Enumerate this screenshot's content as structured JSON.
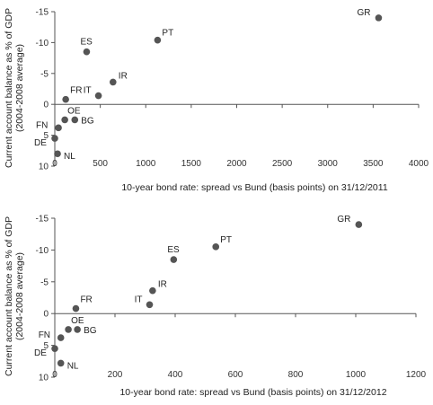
{
  "chart_data": [
    {
      "type": "scatter",
      "xlabel": "10-year bond rate: spread vs Bund (basis points) on 31/12/2011",
      "ylabel": "Current account balance as % of GDP",
      "ylabel2": "(2004-2008 average)",
      "xlim": [
        0,
        4000
      ],
      "xticks": [
        0,
        500,
        1000,
        1500,
        2000,
        2500,
        3000,
        3500,
        4000
      ],
      "ylim": [
        10,
        -15
      ],
      "yticks": [
        -15,
        -10,
        -5,
        0,
        5,
        10
      ],
      "ytick_labels": [
        "-15",
        "-10",
        "-5",
        "0",
        "5",
        "10"
      ],
      "points": [
        {
          "label": "GR",
          "x": 3560,
          "y": -14
        },
        {
          "label": "PT",
          "x": 1130,
          "y": -10.4
        },
        {
          "label": "ES",
          "x": 350,
          "y": -8.5
        },
        {
          "label": "IR",
          "x": 640,
          "y": -3.6
        },
        {
          "label": "IT",
          "x": 480,
          "y": -1.4
        },
        {
          "label": "FR",
          "x": 120,
          "y": -0.8
        },
        {
          "label": "OE",
          "x": 110,
          "y": 2.5
        },
        {
          "label": "BG",
          "x": 220,
          "y": 2.5
        },
        {
          "label": "FN",
          "x": 40,
          "y": 3.8
        },
        {
          "label": "DE",
          "x": 0,
          "y": 5.5
        },
        {
          "label": "NL",
          "x": 30,
          "y": 8.0
        }
      ]
    },
    {
      "type": "scatter",
      "xlabel": "10-year bond rate: spread vs Bund (basis points) on 31/12/2012",
      "ylabel": "Current account balance as % of GDP",
      "ylabel2": "(2004-2008 average)",
      "xlim": [
        0,
        1200
      ],
      "xticks": [
        0,
        200,
        400,
        600,
        800,
        1000,
        1200
      ],
      "ylim": [
        10,
        -15
      ],
      "yticks": [
        -15,
        -10,
        -5,
        0,
        5,
        10
      ],
      "ytick_labels": [
        "-15",
        "-10",
        "-5",
        "0",
        "5",
        "10"
      ],
      "points": [
        {
          "label": "GR",
          "x": 1010,
          "y": -14
        },
        {
          "label": "PT",
          "x": 535,
          "y": -10.5
        },
        {
          "label": "ES",
          "x": 395,
          "y": -8.5
        },
        {
          "label": "IR",
          "x": 325,
          "y": -3.6
        },
        {
          "label": "IT",
          "x": 315,
          "y": -1.4
        },
        {
          "label": "FR",
          "x": 70,
          "y": -0.8
        },
        {
          "label": "OE",
          "x": 45,
          "y": 2.5
        },
        {
          "label": "BG",
          "x": 75,
          "y": 2.5
        },
        {
          "label": "FN",
          "x": 20,
          "y": 3.8
        },
        {
          "label": "DE",
          "x": 0,
          "y": 5.5
        },
        {
          "label": "NL",
          "x": 20,
          "y": 7.8
        }
      ]
    }
  ]
}
